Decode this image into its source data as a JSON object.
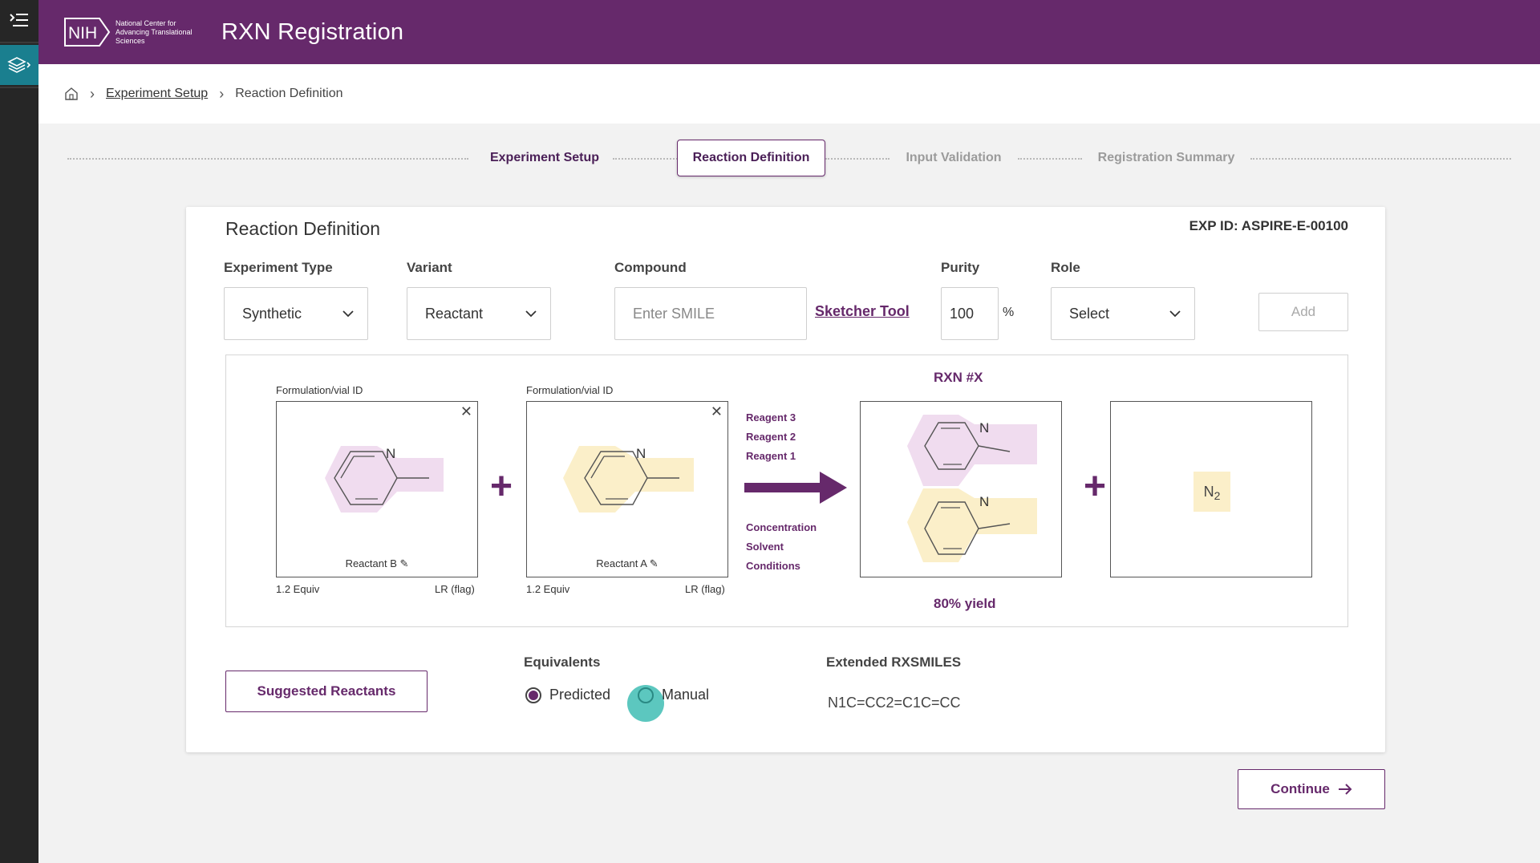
{
  "header": {
    "logo_text": "NIH",
    "org_name": "National Center for Advancing Translational Sciences",
    "app_title": "RXN Registration"
  },
  "breadcrumb": {
    "home_icon": "home-icon",
    "items": [
      "Experiment Setup",
      "Reaction Definition"
    ]
  },
  "stepper": {
    "steps": [
      "Experiment Setup",
      "Reaction Definition",
      "Input Validation",
      "Registration Summary"
    ],
    "active_index": 1
  },
  "card": {
    "title": "Reaction Definition",
    "exp_id": "EXP ID: ASPIRE-E-00100"
  },
  "form": {
    "experiment_type": {
      "label": "Experiment Type",
      "value": "Synthetic"
    },
    "variant": {
      "label": "Variant",
      "value": "Reactant"
    },
    "compound": {
      "label": "Compound",
      "placeholder": "Enter SMILE"
    },
    "sketcher_link": "Sketcher Tool",
    "purity": {
      "label": "Purity",
      "value": "100",
      "unit": "%"
    },
    "role": {
      "label": "Role",
      "value": "Select"
    },
    "add_label": "Add"
  },
  "reaction": {
    "reactants": [
      {
        "vial_label": "Formulation/vial ID",
        "name": "Reactant B",
        "equiv": "1.2 Equiv",
        "flag": "LR (flag)",
        "highlight": "#f0dcef"
      },
      {
        "vial_label": "Formulation/vial ID",
        "name": "Reactant A",
        "equiv": "1.2 Equiv",
        "flag": "LR (flag)",
        "highlight": "#fbefc9"
      }
    ],
    "reagents": [
      "Reagent 3",
      "Reagent 2",
      "Reagent 1"
    ],
    "conditions": [
      "Concentration",
      "Solvent",
      "Conditions"
    ],
    "rxn_number": "RXN #X",
    "yield": "80% yield",
    "byproduct": {
      "symbol": "N",
      "subscript": "2"
    },
    "atom_label": "N",
    "plus": "+"
  },
  "bottom": {
    "suggest_label": "Suggested Reactants",
    "equivalents_label": "Equivalents",
    "radio_predicted": "Predicted",
    "radio_manual": "Manual",
    "selected": "Predicted",
    "rxsmiles_label": "Extended RXSMILES",
    "rxsmiles_value": "N1C=CC2=C1C=CC"
  },
  "continue_label": "Continue",
  "colors": {
    "brand": "#66296b",
    "rail": "#262626",
    "teal": "#1a7f8f",
    "reactant_b": "#f0dcef",
    "reactant_a": "#fbefc9"
  }
}
